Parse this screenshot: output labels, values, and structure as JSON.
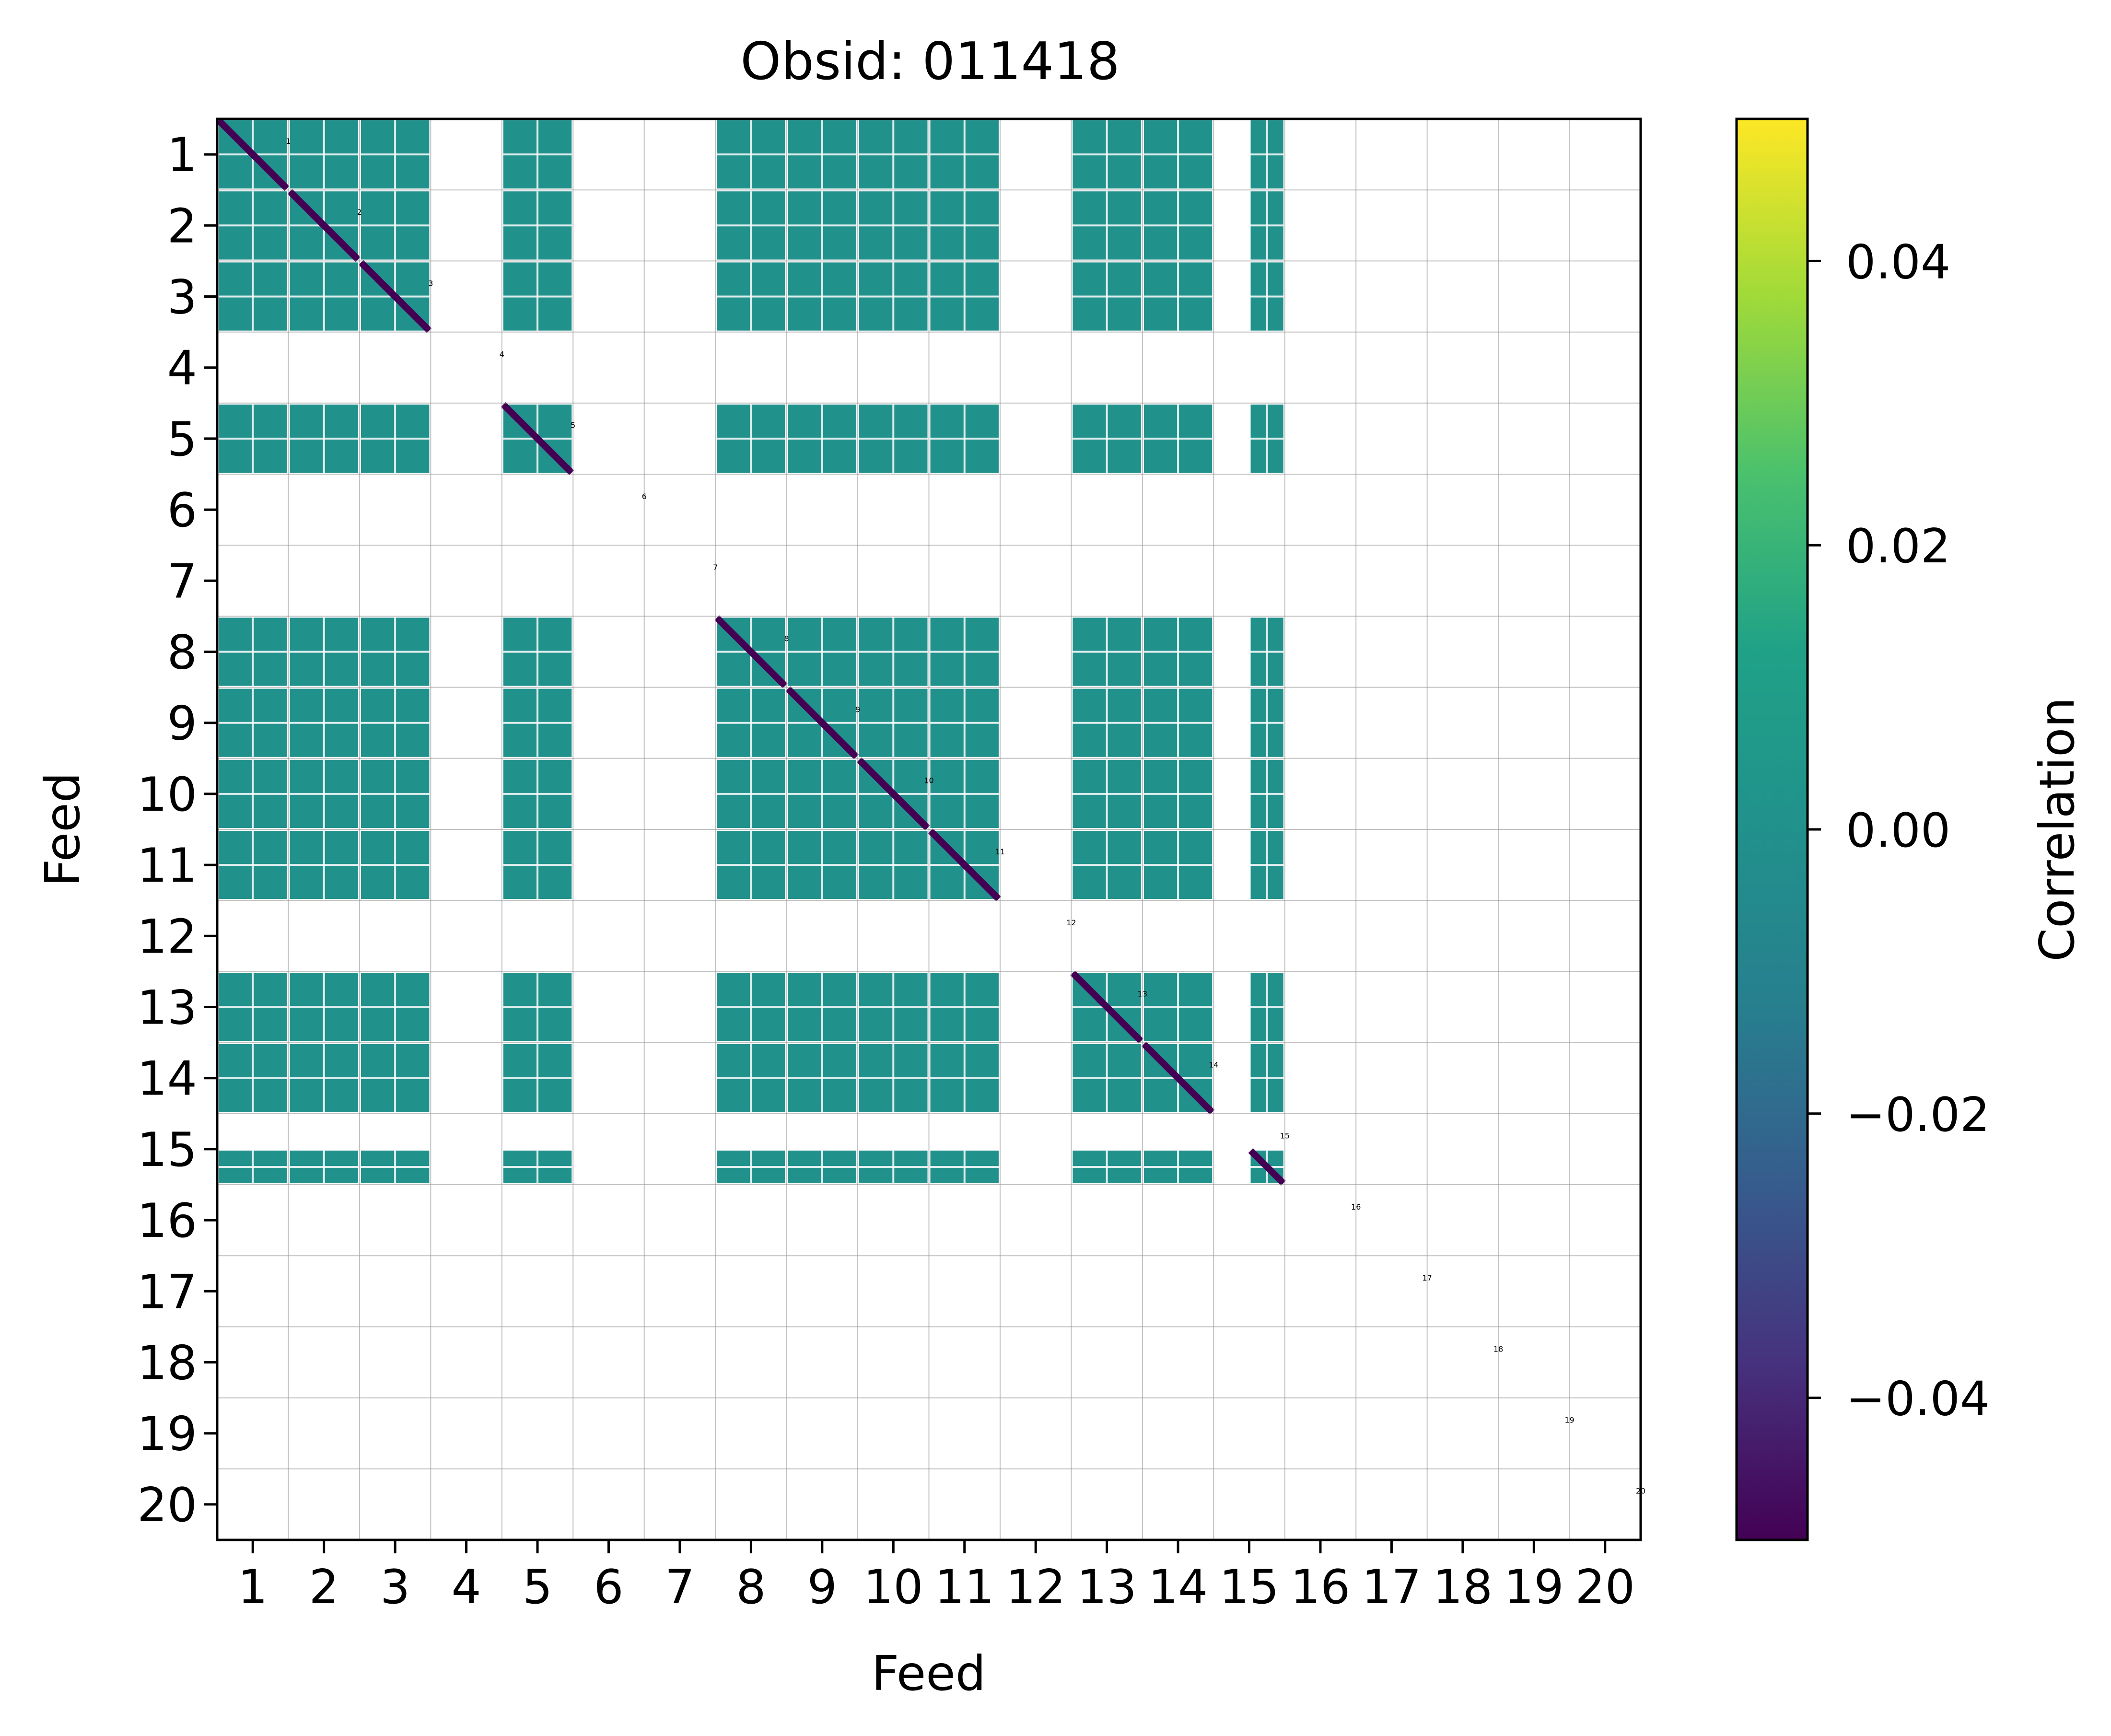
{
  "chart_data": {
    "type": "heatmap",
    "title": "Obsid: 011418",
    "xlabel": "Feed",
    "ylabel": "Feed",
    "x_tick_labels": [
      "1",
      "2",
      "3",
      "4",
      "5",
      "6",
      "7",
      "8",
      "9",
      "10",
      "11",
      "12",
      "13",
      "14",
      "15",
      "16",
      "17",
      "18",
      "19",
      "20"
    ],
    "y_tick_labels": [
      "1",
      "2",
      "3",
      "4",
      "5",
      "6",
      "7",
      "8",
      "9",
      "10",
      "11",
      "12",
      "13",
      "14",
      "15",
      "16",
      "17",
      "18",
      "19",
      "20"
    ],
    "diagonal_labels": [
      "1",
      "2",
      "3",
      "4",
      "5",
      "6",
      "7",
      "8",
      "9",
      "10",
      "11",
      "12",
      "13",
      "14",
      "15",
      "16",
      "17",
      "18",
      "19",
      "20"
    ],
    "feeds": [
      1,
      2,
      3,
      4,
      5,
      6,
      7,
      8,
      9,
      10,
      11,
      12,
      13,
      14,
      15,
      16,
      17,
      18,
      19,
      20
    ],
    "present_feeds": [
      1,
      2,
      3,
      5,
      8,
      9,
      10,
      11,
      13,
      14,
      15
    ],
    "partial_feeds": [
      15
    ],
    "masked_feeds": [
      4,
      6,
      7,
      12,
      16,
      17,
      18,
      19,
      20
    ],
    "typical_value": 0.0,
    "diagonal_value": -0.05,
    "grid": true,
    "colorbar": {
      "label": "Correlation",
      "colormap": "viridis",
      "vmin": -0.05,
      "vmax": 0.05,
      "ticks": [
        0.04,
        0.02,
        0.0,
        -0.02,
        -0.04
      ],
      "tick_labels": [
        "0.04",
        "0.02",
        "0.00",
        "−0.02",
        "−0.04"
      ]
    },
    "colors": {
      "viridis_low": "#440154",
      "viridis_mid": "#21918c",
      "viridis_high": "#fde725",
      "grid": "#999999"
    }
  }
}
